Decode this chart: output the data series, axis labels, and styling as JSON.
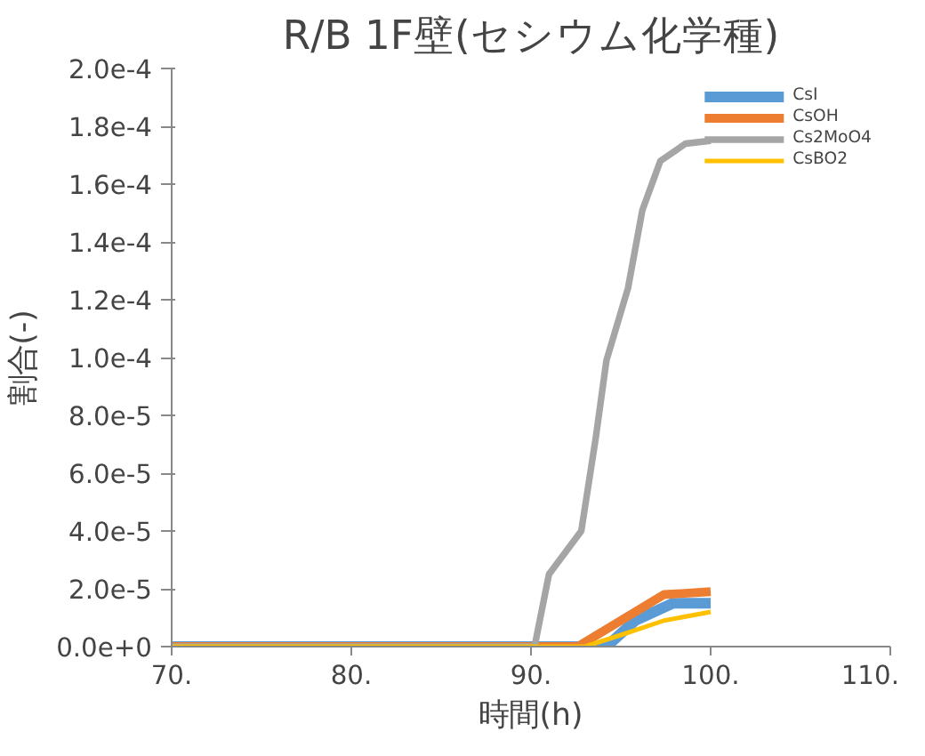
{
  "chart_data": {
    "type": "line",
    "title": "R/B 1F壁(セシウム化学種)",
    "xlabel": "時間(h)",
    "ylabel": "割合(-)",
    "xlim": [
      70,
      110
    ],
    "xticks": [
      {
        "value": 70,
        "label": "70."
      },
      {
        "value": 80,
        "label": "80."
      },
      {
        "value": 90,
        "label": "90."
      },
      {
        "value": 100,
        "label": "100."
      },
      {
        "value": 110,
        "label": "110."
      }
    ],
    "ylim": [
      0,
      0.0002
    ],
    "yticks": [
      {
        "value": 0,
        "label": "0.0e+0"
      },
      {
        "value": 2e-05,
        "label": "2.0e-5"
      },
      {
        "value": 4e-05,
        "label": "4.0e-5"
      },
      {
        "value": 6e-05,
        "label": "6.0e-5"
      },
      {
        "value": 8e-05,
        "label": "8.0e-5"
      },
      {
        "value": 0.0001,
        "label": "1.0e-4"
      },
      {
        "value": 0.00012,
        "label": "1.2e-4"
      },
      {
        "value": 0.00014,
        "label": "1.4e-4"
      },
      {
        "value": 0.00016,
        "label": "1.6e-4"
      },
      {
        "value": 0.00018,
        "label": "1.8e-4"
      },
      {
        "value": 0.0002,
        "label": "2.0e-4"
      }
    ],
    "grid": false,
    "legend": "top right",
    "marker": "none",
    "line_style": "solid",
    "series": [
      {
        "name": "CsI",
        "color": "#5b9bd5",
        "x": [
          70,
          94.2,
          95.8,
          97.9,
          100
        ],
        "values": [
          0,
          0,
          9e-06,
          1.5e-05,
          1.5e-05
        ]
      },
      {
        "name": "CsOH",
        "color": "#ed7d31",
        "x": [
          70,
          92.6,
          94.2,
          95.8,
          97.4,
          100
        ],
        "values": [
          0,
          0,
          6e-06,
          1.2e-05,
          1.8e-05,
          1.9e-05
        ]
      },
      {
        "name": "Cs2MoO4",
        "color": "#a5a5a5",
        "x": [
          70,
          90.2,
          91.0,
          92.8,
          93.6,
          94.2,
          95.4,
          96.2,
          97.2,
          98.6,
          100
        ],
        "values": [
          0,
          0,
          2.5e-05,
          4e-05,
          7.2e-05,
          9.9e-05,
          0.000124,
          0.000151,
          0.000168,
          0.000174,
          0.000175
        ]
      },
      {
        "name": "CsBO2",
        "color": "#ffc000",
        "x": [
          70,
          93,
          95,
          97.4,
          100
        ],
        "values": [
          0,
          0,
          4e-06,
          9e-06,
          1.2e-05
        ]
      }
    ]
  }
}
